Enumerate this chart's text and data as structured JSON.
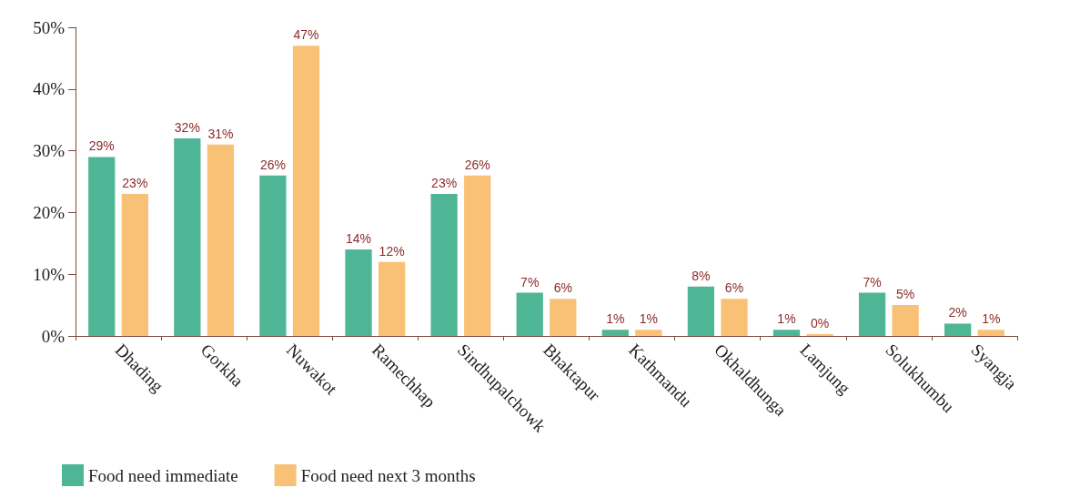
{
  "chart_data": {
    "type": "bar",
    "categories": [
      "Dhading",
      "Gorkha",
      "Nuwakot",
      "Ramechhap",
      "Sindhupalchowk",
      "Bhaktapur",
      "Kathmandu",
      "Okhaldhunga",
      "Lamjung",
      "Solukhumbu",
      "Syangja"
    ],
    "series": [
      {
        "name": "Food need immediate",
        "color": "#4fb695",
        "values": [
          29,
          32,
          26,
          14,
          23,
          7,
          1,
          8,
          1,
          7,
          2
        ],
        "value_labels": [
          "29%",
          "32%",
          "26%",
          "14%",
          "23%",
          "7%",
          "1%",
          "8%",
          "1%",
          "7%",
          "2%"
        ]
      },
      {
        "name": "Food need next 3 months",
        "color": "#f9c175",
        "values": [
          23,
          31,
          47,
          12,
          26,
          6,
          1,
          6,
          0.3,
          5,
          1
        ],
        "value_labels": [
          "23%",
          "31%",
          "47%",
          "12%",
          "26%",
          "6%",
          "1%",
          "6%",
          "0%",
          "5%",
          "1%"
        ]
      }
    ],
    "ylim": [
      0,
      50
    ],
    "yticks": [
      {
        "value": 0,
        "label": "0%"
      },
      {
        "value": 10,
        "label": "10%"
      },
      {
        "value": 20,
        "label": "20%"
      },
      {
        "value": 30,
        "label": "30%"
      },
      {
        "value": 40,
        "label": "40%"
      },
      {
        "value": 50,
        "label": "50%"
      }
    ],
    "grid": false,
    "legend": "bottom left"
  }
}
